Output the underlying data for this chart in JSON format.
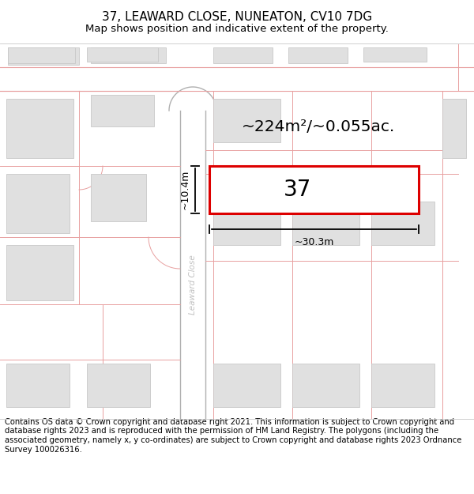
{
  "title": "37, LEAWARD CLOSE, NUNEATON, CV10 7DG",
  "subtitle": "Map shows position and indicative extent of the property.",
  "footer": "Contains OS data © Crown copyright and database right 2021. This information is subject to Crown copyright and database rights 2023 and is reproduced with the permission of HM Land Registry. The polygons (including the associated geometry, namely x, y co-ordinates) are subject to Crown copyright and database rights 2023 Ordnance Survey 100026316.",
  "map_bg": "#f7f7f7",
  "road_color": "#ffffff",
  "road_outline_color": "#e8a0a0",
  "plot_rect_color": "#dd0000",
  "plot_fill": "#ffffff",
  "building_fill": "#e0e0e0",
  "building_outline": "#c8c8c8",
  "street_label": "Leaward Close",
  "street_label_color": "#c0c0c0",
  "plot_number": "37",
  "area_label": "~224m²/~0.055ac.",
  "width_label": "~30.3m",
  "height_label": "~10.4m",
  "title_fontsize": 11,
  "subtitle_fontsize": 9.5,
  "footer_fontsize": 7.2
}
